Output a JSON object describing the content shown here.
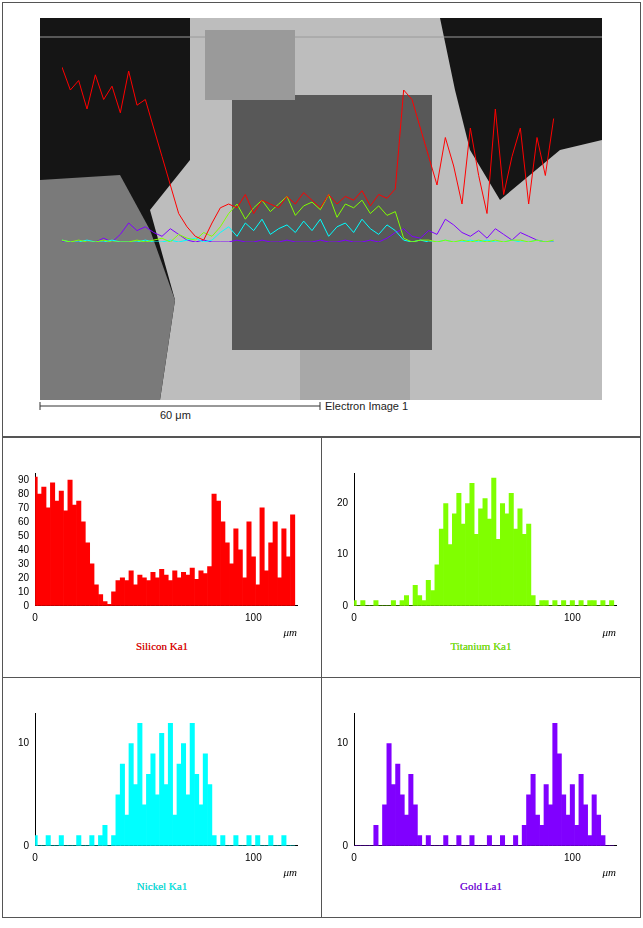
{
  "image": {
    "scale_bar": "60 μm",
    "caption": "Electron Image 1",
    "overlay": {
      "type": "line",
      "xlim": [
        0,
        120
      ],
      "ylim": [
        0,
        100
      ],
      "tick_labels": false
    }
  },
  "chart_data": [
    {
      "type": "bar",
      "title": "Silicon Ka1",
      "x_label": "μm",
      "color": "#ff0000",
      "grid": false,
      "x": [
        0,
        2,
        4,
        6,
        8,
        10,
        12,
        14,
        16,
        18,
        20,
        22,
        24,
        26,
        28,
        30,
        32,
        34,
        36,
        38,
        40,
        42,
        44,
        46,
        48,
        50,
        52,
        54,
        56,
        58,
        60,
        62,
        64,
        66,
        68,
        70,
        72,
        74,
        76,
        78,
        80,
        82,
        84,
        86,
        88,
        90,
        92,
        94,
        96,
        98,
        100,
        102,
        104,
        106,
        108,
        110,
        112,
        114,
        116,
        118
      ],
      "values": [
        92,
        80,
        85,
        70,
        88,
        75,
        82,
        68,
        90,
        72,
        75,
        60,
        45,
        30,
        15,
        8,
        3,
        1,
        10,
        18,
        20,
        18,
        25,
        15,
        22,
        20,
        18,
        24,
        20,
        26,
        22,
        18,
        25,
        20,
        24,
        22,
        27,
        19,
        25,
        23,
        28,
        80,
        75,
        60,
        45,
        30,
        55,
        40,
        20,
        60,
        35,
        15,
        70,
        25,
        45,
        60,
        20,
        55,
        35,
        65
      ],
      "xlim": [
        0,
        120
      ],
      "xticks": [
        0,
        100
      ],
      "ylim": [
        0,
        95
      ],
      "yticks": [
        0,
        10,
        20,
        30,
        40,
        50,
        60,
        70,
        80,
        90
      ]
    },
    {
      "type": "bar",
      "title": "Titanium Ka1",
      "x_label": "μm",
      "color": "#80ff00",
      "grid": false,
      "x": [
        0,
        2,
        4,
        6,
        8,
        10,
        12,
        14,
        16,
        18,
        20,
        22,
        24,
        26,
        28,
        30,
        32,
        34,
        36,
        38,
        40,
        42,
        44,
        46,
        48,
        50,
        52,
        54,
        56,
        58,
        60,
        62,
        64,
        66,
        68,
        70,
        72,
        74,
        76,
        78,
        80,
        82,
        84,
        86,
        88,
        90,
        92,
        94,
        96,
        98,
        100,
        102,
        104,
        106,
        108,
        110,
        112,
        114,
        116,
        118
      ],
      "values": [
        1,
        0,
        1,
        0,
        0,
        1,
        0,
        0,
        0,
        1,
        0,
        1,
        2,
        0,
        4,
        2,
        1,
        5,
        3,
        8,
        15,
        20,
        12,
        18,
        22,
        16,
        20,
        24,
        14,
        19,
        21,
        17,
        25,
        13,
        20,
        18,
        22,
        15,
        19,
        14,
        16,
        2,
        0,
        1,
        1,
        0,
        1,
        0,
        1,
        0,
        1,
        0,
        1,
        0,
        1,
        1,
        0,
        1,
        0,
        1
      ],
      "xlim": [
        0,
        120
      ],
      "xticks": [
        0,
        100
      ],
      "ylim": [
        0,
        26
      ],
      "yticks": [
        0,
        10,
        20
      ]
    },
    {
      "type": "bar",
      "title": "Nickel Ka1",
      "x_label": "μm",
      "color": "#00ffff",
      "grid": false,
      "x": [
        0,
        2,
        4,
        6,
        8,
        10,
        12,
        14,
        16,
        18,
        20,
        22,
        24,
        26,
        28,
        30,
        32,
        34,
        36,
        38,
        40,
        42,
        44,
        46,
        48,
        50,
        52,
        54,
        56,
        58,
        60,
        62,
        64,
        66,
        68,
        70,
        72,
        74,
        76,
        78,
        80,
        82,
        84,
        86,
        88,
        90,
        92,
        94,
        96,
        98,
        100,
        102,
        104,
        106,
        108,
        110,
        112,
        114,
        116,
        118
      ],
      "values": [
        1,
        0,
        0,
        1,
        0,
        0,
        1,
        0,
        0,
        0,
        1,
        0,
        0,
        1,
        0,
        1,
        2,
        0,
        1,
        5,
        8,
        3,
        10,
        6,
        12,
        4,
        7,
        9,
        5,
        11,
        6,
        12,
        3,
        8,
        10,
        5,
        12,
        7,
        4,
        9,
        6,
        1,
        0,
        1,
        0,
        0,
        1,
        0,
        0,
        1,
        0,
        1,
        0,
        0,
        1,
        0,
        0,
        1,
        0,
        0
      ],
      "xlim": [
        0,
        120
      ],
      "xticks": [
        0,
        100
      ],
      "ylim": [
        0,
        13
      ],
      "yticks": [
        0,
        10
      ]
    },
    {
      "type": "bar",
      "title": "Gold La1",
      "x_label": "μm",
      "color": "#8000ff",
      "grid": false,
      "x": [
        0,
        2,
        4,
        6,
        8,
        10,
        12,
        14,
        16,
        18,
        20,
        22,
        24,
        26,
        28,
        30,
        32,
        34,
        36,
        38,
        40,
        42,
        44,
        46,
        48,
        50,
        52,
        54,
        56,
        58,
        60,
        62,
        64,
        66,
        68,
        70,
        72,
        74,
        76,
        78,
        80,
        82,
        84,
        86,
        88,
        90,
        92,
        94,
        96,
        98,
        100,
        102,
        104,
        106,
        108,
        110,
        112,
        114,
        116,
        118
      ],
      "values": [
        0,
        0,
        0,
        0,
        0,
        2,
        0,
        4,
        10,
        6,
        8,
        5,
        3,
        7,
        4,
        1,
        0,
        1,
        0,
        0,
        0,
        1,
        0,
        0,
        1,
        0,
        0,
        1,
        0,
        0,
        0,
        1,
        0,
        0,
        1,
        0,
        0,
        1,
        0,
        2,
        5,
        7,
        3,
        2,
        6,
        4,
        12,
        9,
        5,
        3,
        6,
        2,
        7,
        4,
        1,
        5,
        3,
        1,
        0,
        0
      ],
      "xlim": [
        0,
        120
      ],
      "xticks": [
        0,
        100
      ],
      "ylim": [
        0,
        13
      ],
      "yticks": [
        0,
        10
      ]
    }
  ]
}
